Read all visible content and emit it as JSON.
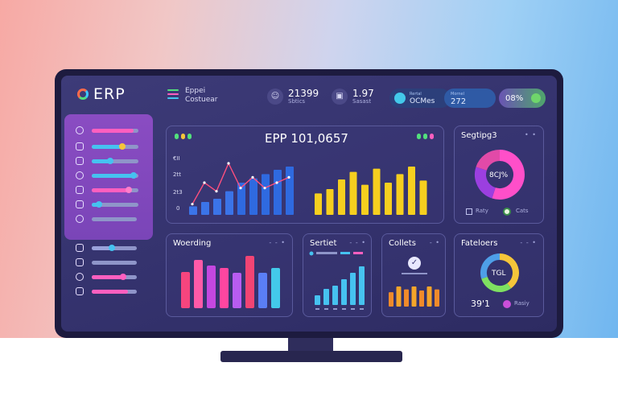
{
  "app": {
    "logo_text": "ERP"
  },
  "header": {
    "title_line1": "Eppei",
    "title_line2": "Costuear",
    "stats": [
      {
        "icon": "user-icon",
        "value": "21399",
        "sub": "Sbtics"
      },
      {
        "icon": "monitor-icon",
        "value": "1.97",
        "sub": "Sasast"
      },
      {
        "value": "OCMes",
        "sub": "Rertal"
      },
      {
        "value": "272",
        "sub": "Mornel"
      },
      {
        "value": "08%"
      }
    ]
  },
  "sidebar": {
    "items": [
      {
        "icon": "settings-icon",
        "fill": 0.9,
        "color": "#ff5fbf",
        "knob": null
      },
      {
        "icon": "box-icon",
        "fill": 0.65,
        "color": "#46c2f0",
        "knob": "#f5c53a"
      },
      {
        "icon": "clock-icon",
        "fill": 0.4,
        "color": "#46c2f0",
        "knob": "#46c2f0"
      },
      {
        "icon": "chart-icon",
        "fill": 0.9,
        "color": "#46c2f0",
        "knob": "#46c2f0"
      },
      {
        "icon": "rocket-icon",
        "fill": 0.8,
        "color": "#ff5fbf",
        "knob": "#ff7ecb"
      },
      {
        "icon": "doc-icon",
        "fill": 0.15,
        "color": "#46c2f0",
        "knob": "#46c2f0"
      },
      {
        "icon": "globe-icon",
        "fill": 0.0,
        "color": "#46c2f0",
        "knob": null
      },
      {
        "icon": "eye-icon",
        "fill": 0.45,
        "color": "#9aa2dc",
        "knob": "#46c2f0"
      },
      {
        "icon": "cube-icon",
        "fill": 0.0,
        "color": "#46c2f0",
        "knob": null
      },
      {
        "icon": "layers-icon",
        "fill": 0.7,
        "color": "#ff5fbf",
        "knob": "#ff5fbf"
      },
      {
        "icon": "user-icon",
        "fill": 0.8,
        "color": "#ff5fbf",
        "knob": null
      }
    ]
  },
  "cards": {
    "main": {
      "title": "EPP 101,0657",
      "y_labels": [
        "€II",
        "2tt",
        "2t3",
        "0"
      ]
    },
    "segments": {
      "title": "Segtipg3",
      "center": "8CJ%",
      "foot1": "Raty",
      "foot2": "Cats"
    },
    "w": {
      "title": "Woerding"
    },
    "s": {
      "title": "Sertiet"
    },
    "c": {
      "title": "Collets"
    },
    "f": {
      "title": "Fateloers",
      "center": "TGL",
      "value": "39'1",
      "foot": "Rasiy"
    }
  },
  "chart_data": [
    {
      "type": "bar",
      "name": "main-left",
      "values": [
        8,
        12,
        15,
        22,
        30,
        34,
        38,
        42,
        45
      ],
      "line_overlay": [
        10,
        30,
        22,
        48,
        25,
        35,
        25,
        30,
        35
      ],
      "ylim": [
        0,
        60
      ]
    },
    {
      "type": "bar",
      "name": "main-right",
      "values": [
        20,
        24,
        33,
        40,
        28,
        43,
        30,
        38,
        45,
        32
      ],
      "ylim": [
        0,
        60
      ]
    },
    {
      "type": "bar",
      "name": "woerding",
      "values": [
        45,
        60,
        53,
        50,
        44,
        65,
        44,
        50
      ],
      "colors": [
        "#f5457e",
        "#ff5aa8",
        "#c447e0",
        "#ff46a0",
        "#b85cf0",
        "#f24474",
        "#5a7ef5",
        "#43c9ea"
      ],
      "ylim": [
        0,
        70
      ]
    },
    {
      "type": "bar",
      "name": "sertiet",
      "values": [
        15,
        25,
        30,
        40,
        50,
        60
      ],
      "ylim": [
        0,
        70
      ]
    },
    {
      "type": "bar",
      "name": "collets",
      "values": [
        25,
        35,
        30,
        35,
        28,
        35,
        30
      ],
      "ylim": [
        0,
        70
      ]
    },
    {
      "type": "pie",
      "name": "segtipg3",
      "values": [
        55,
        25,
        20
      ],
      "colors": [
        "#ff4fc9",
        "#9b3fe0",
        "#e24aa8"
      ]
    },
    {
      "type": "pie",
      "name": "fateloers",
      "values": [
        40,
        30,
        30
      ],
      "colors": [
        "#f5c53a",
        "#7ee061",
        "#4e9fe8"
      ]
    }
  ]
}
